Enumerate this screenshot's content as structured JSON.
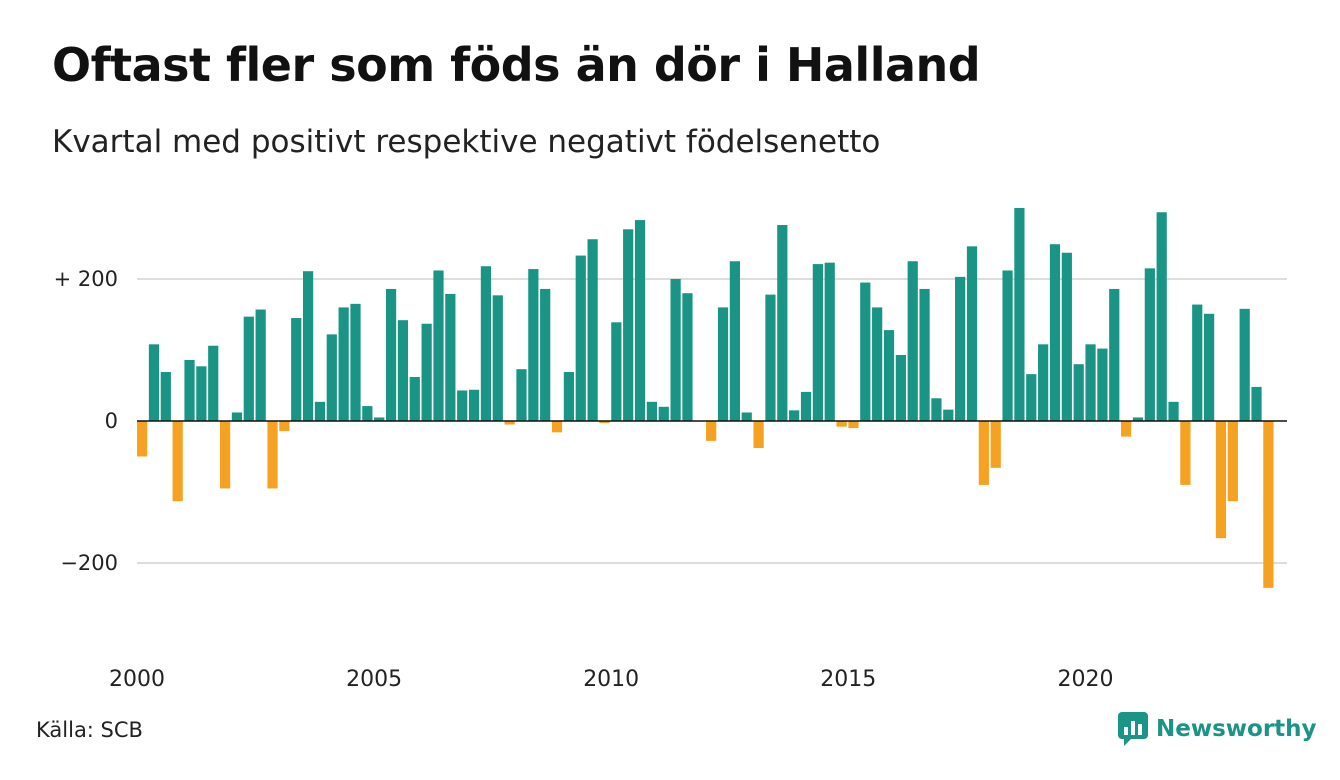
{
  "title": "Oftast fler som föds än dör i Halland",
  "subtitle": "Kvartal med positivt respektive negativt födelsenetto",
  "source": "Källa: SCB",
  "brand": {
    "name": "Newsworthy",
    "icon": "newsworthy-logo-icon",
    "color": "#1a9485"
  },
  "chart_data": {
    "type": "bar",
    "title": "Oftast fler som föds än dör i Halland",
    "subtitle": "Kvartal med positivt respektive negativt födelsenetto",
    "xlabel": "",
    "ylabel": "",
    "ylim": [
      -260,
      310
    ],
    "y_ticks": [
      {
        "value": 200,
        "label": "+ 200"
      },
      {
        "value": 0,
        "label": "0"
      },
      {
        "value": -200,
        "label": "−200"
      }
    ],
    "x_ticks": [
      {
        "year": 2000,
        "label": "2000"
      },
      {
        "year": 2005,
        "label": "2005"
      },
      {
        "year": 2010,
        "label": "2010"
      },
      {
        "year": 2015,
        "label": "2015"
      },
      {
        "year": 2020,
        "label": "2020"
      }
    ],
    "grid": true,
    "positive_color": "#1a9485",
    "negative_color": "#f5a122",
    "start_year": 2000,
    "quarters_per_year": 4,
    "categories": [
      "2000 K1",
      "2000 K2",
      "2000 K3",
      "2000 K4",
      "2001 K1",
      "2001 K2",
      "2001 K3",
      "2001 K4",
      "2002 K1",
      "2002 K2",
      "2002 K3",
      "2002 K4",
      "2003 K1",
      "2003 K2",
      "2003 K3",
      "2003 K4",
      "2004 K1",
      "2004 K2",
      "2004 K3",
      "2004 K4",
      "2005 K1",
      "2005 K2",
      "2005 K3",
      "2005 K4",
      "2006 K1",
      "2006 K2",
      "2006 K3",
      "2006 K4",
      "2007 K1",
      "2007 K2",
      "2007 K3",
      "2007 K4",
      "2008 K1",
      "2008 K2",
      "2008 K3",
      "2008 K4",
      "2009 K1",
      "2009 K2",
      "2009 K3",
      "2009 K4",
      "2010 K1",
      "2010 K2",
      "2010 K3",
      "2010 K4",
      "2011 K1",
      "2011 K2",
      "2011 K3",
      "2011 K4",
      "2012 K1",
      "2012 K2",
      "2012 K3",
      "2012 K4",
      "2013 K1",
      "2013 K2",
      "2013 K3",
      "2013 K4",
      "2014 K1",
      "2014 K2",
      "2014 K3",
      "2014 K4",
      "2015 K1",
      "2015 K2",
      "2015 K3",
      "2015 K4",
      "2016 K1",
      "2016 K2",
      "2016 K3",
      "2016 K4",
      "2017 K1",
      "2017 K2",
      "2017 K3",
      "2017 K4",
      "2018 K1",
      "2018 K2",
      "2018 K3",
      "2018 K4",
      "2019 K1",
      "2019 K2",
      "2019 K3",
      "2019 K4",
      "2020 K1",
      "2020 K2",
      "2020 K3",
      "2020 K4",
      "2021 K1",
      "2021 K2",
      "2021 K3",
      "2021 K4",
      "2022 K1",
      "2022 K2",
      "2022 K3",
      "2022 K4",
      "2023 K1",
      "2023 K2",
      "2023 K3",
      "2023 K4",
      "2024 K1"
    ],
    "values": [
      -50,
      108,
      69,
      -113,
      86,
      77,
      106,
      -95,
      12,
      147,
      157,
      -95,
      -14,
      145,
      211,
      27,
      122,
      160,
      165,
      21,
      5,
      186,
      142,
      62,
      137,
      212,
      179,
      43,
      44,
      218,
      177,
      -5,
      73,
      214,
      186,
      -16,
      69,
      233,
      256,
      -3,
      139,
      270,
      283,
      27,
      20,
      200,
      180,
      0,
      -28,
      160,
      225,
      12,
      -38,
      178,
      276,
      15,
      41,
      221,
      223,
      -8,
      -10,
      195,
      160,
      128,
      93,
      225,
      186,
      32,
      16,
      203,
      246,
      -90,
      -66,
      212,
      300,
      66,
      108,
      249,
      237,
      80,
      108,
      102,
      186,
      -22,
      5,
      215,
      294,
      27,
      -90,
      164,
      151,
      -165,
      -113,
      158,
      48,
      -235,
      0
    ]
  }
}
